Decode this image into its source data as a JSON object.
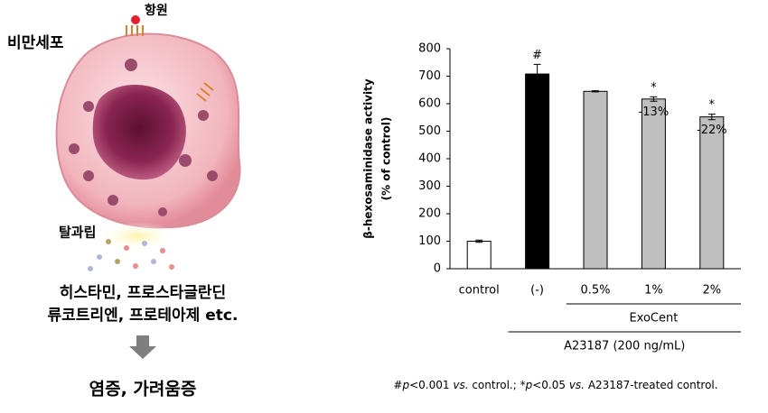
{
  "illustration": {
    "cell_label": "비만세포",
    "antigen_label": "항원",
    "degranulation_label": "탈과립",
    "mediators": [
      "히스타민, 프로스타글란딘",
      "류코트리엔, 프로테아제 etc."
    ],
    "outcome": "염증, 가려움증"
  },
  "chart_data": {
    "type": "bar",
    "y_label": [
      "β-hexosaminidase activity",
      "(% of control)"
    ],
    "categories": [
      "control",
      "(-)",
      "0.5%",
      "1%",
      "2%"
    ],
    "values": [
      100,
      708,
      645,
      617,
      552
    ],
    "errors": [
      4,
      35,
      2,
      8,
      10
    ],
    "colors": [
      "#ffffff",
      "#000000",
      "#bfbfbf",
      "#bfbfbf",
      "#bfbfbf"
    ],
    "markers": [
      null,
      "#",
      null,
      "*",
      "*"
    ],
    "changes": [
      null,
      null,
      null,
      "-13%",
      "-22%"
    ],
    "ylim": [
      0,
      800
    ],
    "yticks": [
      0,
      100,
      200,
      300,
      400,
      500,
      600,
      700,
      800
    ],
    "groups": [
      {
        "label": "ExoCent",
        "from": "0.5%",
        "to": "2%"
      },
      {
        "label": "A23187 (200 ng/mL)",
        "from": "(-)",
        "to": "2%"
      }
    ],
    "footnote": [
      "#",
      "p",
      "<0.001 ",
      "vs.",
      " control.; *",
      "p",
      "<0.05 ",
      "vs.",
      " A23187-treated control."
    ]
  }
}
